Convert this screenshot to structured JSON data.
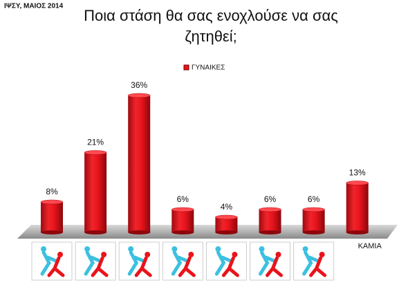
{
  "chart_data": {
    "type": "bar",
    "source": "ΙΨΣΥ, ΜΑΙΟΣ 2014",
    "title": [
      "Ποια στάση θα σας ενοχλούσε να σας",
      "ζητηθεί;"
    ],
    "categories": [
      null,
      null,
      null,
      null,
      null,
      null,
      null,
      "ΚΑΜΙΑ"
    ],
    "series": [
      {
        "name": "ΓΥΝΑΙΚΕΣ",
        "color": "#e8141c",
        "values": [
          8,
          21,
          36,
          6,
          4,
          6,
          6,
          13
        ],
        "value_labels": [
          "8%",
          "21%",
          "36%",
          "6%",
          "4%",
          "6%",
          "6%",
          "13%"
        ]
      }
    ],
    "legend": "top"
  }
}
